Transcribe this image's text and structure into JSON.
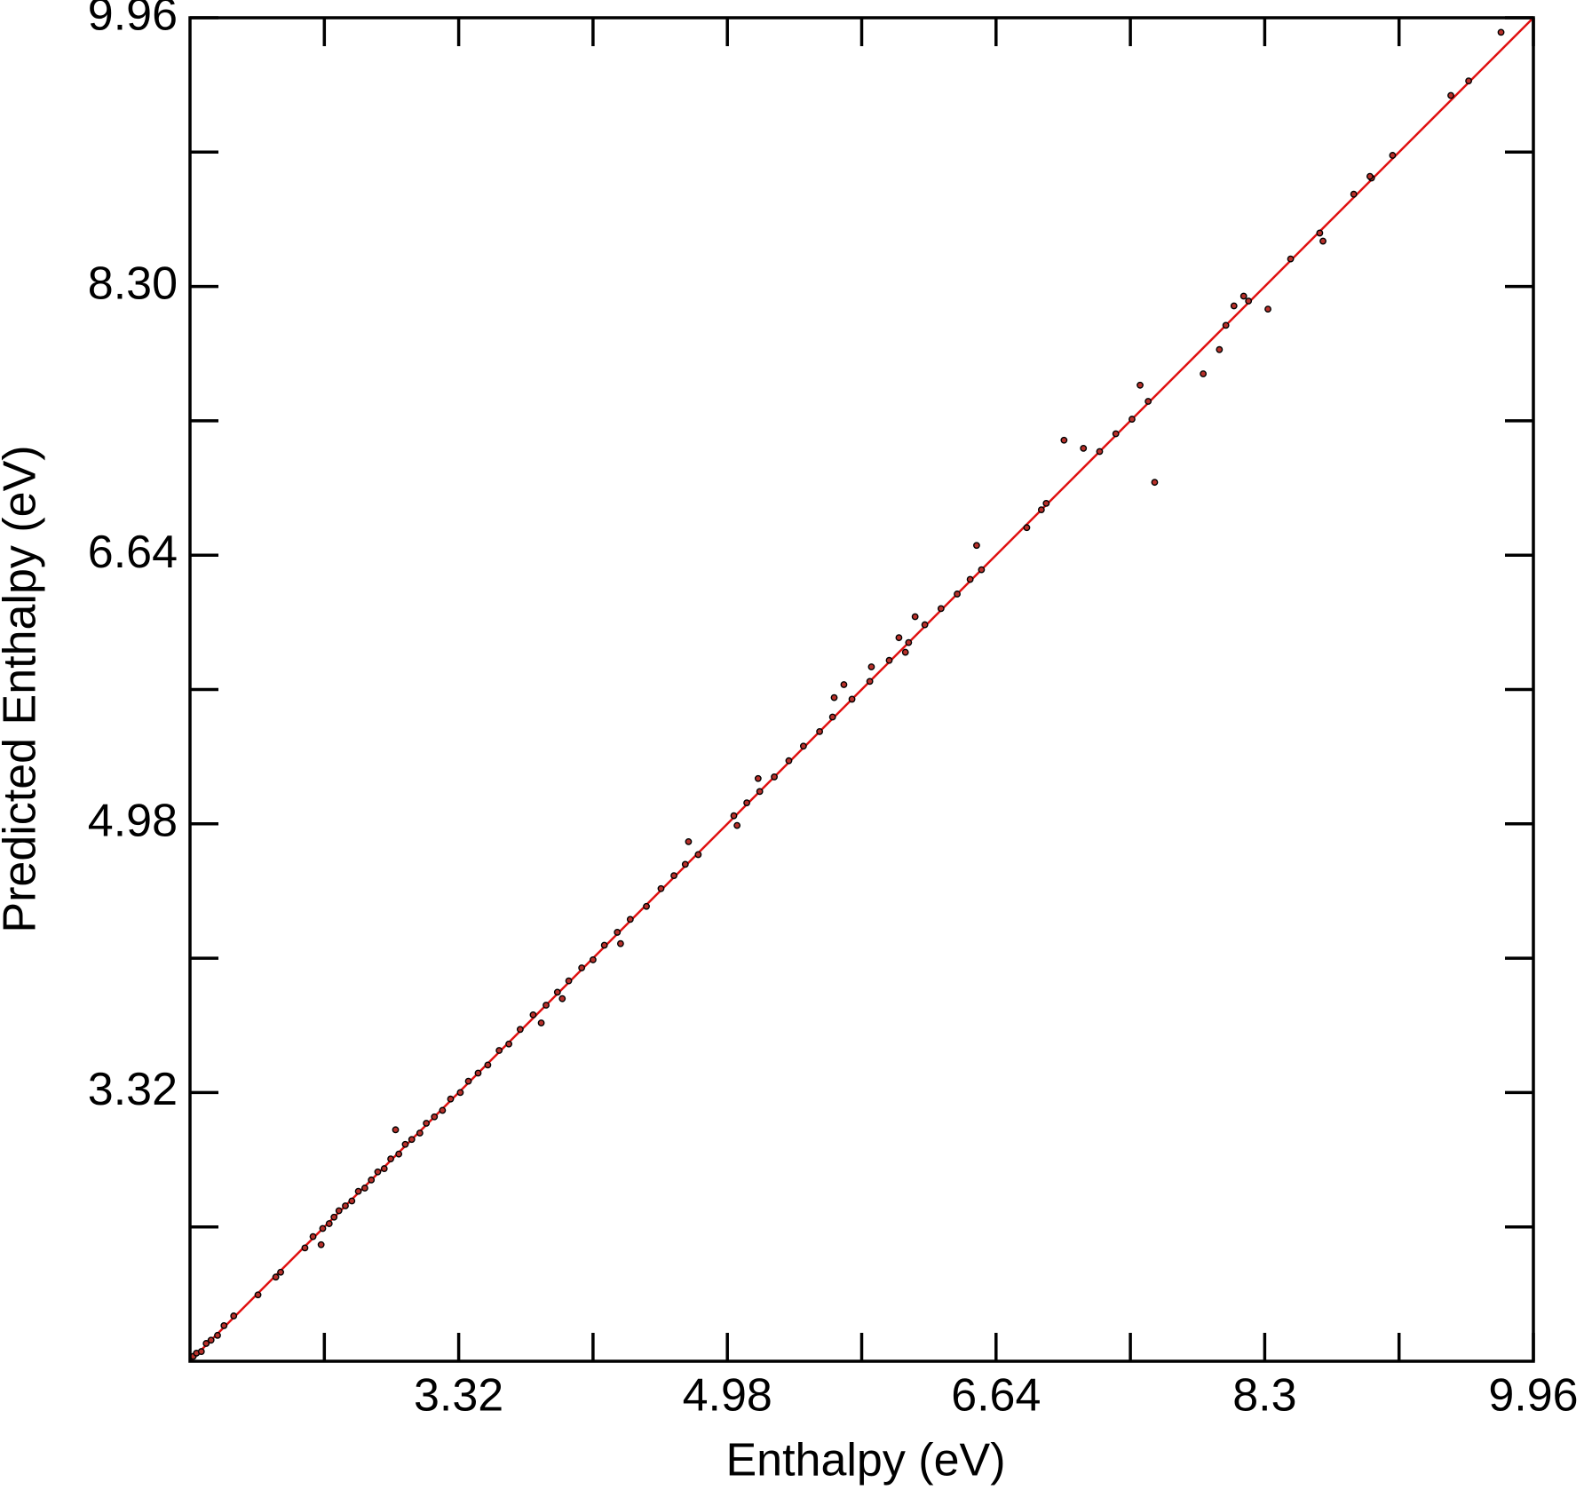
{
  "chart_data": {
    "type": "scatter",
    "x_label": "Enthalpy (eV)",
    "y_label": "Predicted Enthalpy (eV)",
    "xlim": [
      1.66,
      9.96
    ],
    "ylim": [
      1.66,
      9.96
    ],
    "xticks": [
      3.32,
      4.98,
      6.64,
      8.3,
      9.96
    ],
    "yticks": [
      {
        "value": 3.32,
        "label": "3.32"
      },
      {
        "value": 4.98,
        "label": "4.98"
      },
      {
        "value": 6.64,
        "label": "6.64"
      },
      {
        "value": 8.3,
        "label": "8.30"
      },
      {
        "value": 9.96,
        "label": "9.96"
      }
    ],
    "minor_xticks": [
      2.49,
      4.15,
      5.81,
      7.47,
      9.13
    ],
    "minor_yticks": [
      2.49,
      4.15,
      5.81,
      7.47,
      9.13
    ],
    "reference_line": {
      "color": "#e01010"
    },
    "series": [
      {
        "color": "#b8302a",
        "x": [
          1.68,
          1.7,
          1.73,
          1.76,
          1.79,
          1.83,
          1.87,
          1.93,
          2.08,
          2.19,
          2.37,
          2.42,
          2.48,
          2.52,
          2.55,
          2.58,
          2.62,
          2.66,
          2.7,
          2.74,
          2.78,
          2.82,
          2.86,
          2.9,
          2.95,
          2.99,
          3.03,
          3.08,
          3.12,
          3.17,
          3.22,
          3.27,
          3.33,
          3.38,
          3.44,
          3.5,
          3.57,
          3.63,
          3.7,
          3.78,
          3.86,
          3.93,
          4.0,
          4.08,
          4.15,
          4.22,
          4.3,
          4.38,
          4.48,
          4.57,
          4.65,
          4.72,
          4.8,
          5.02,
          5.1,
          5.18,
          5.27,
          5.36,
          5.45,
          5.55,
          5.63,
          5.75,
          5.86,
          5.98,
          6.1,
          6.2,
          6.3,
          6.4,
          6.48,
          6.55,
          6.92,
          7.28,
          7.38,
          7.48,
          7.58,
          8.06,
          8.2,
          8.64,
          8.96,
          7.06,
          7.18,
          7.53,
          7.62,
          7.92,
          8.02,
          8.11,
          8.17,
          8.32,
          8.66,
          8.46,
          9.76,
          9.56,
          9.45,
          9.09,
          8.95,
          8.85,
          6.52,
          6.83,
          6.95,
          6.04,
          6.14,
          6.08,
          5.87,
          5.7,
          5.64,
          5.17,
          5.04,
          4.74,
          4.32,
          3.96,
          3.83,
          2.93,
          2.47,
          2.22
        ],
        "y": [
          1.69,
          1.71,
          1.72,
          1.77,
          1.79,
          1.82,
          1.88,
          1.94,
          2.07,
          2.18,
          2.36,
          2.43,
          2.48,
          2.51,
          2.55,
          2.59,
          2.62,
          2.65,
          2.71,
          2.73,
          2.78,
          2.83,
          2.85,
          2.91,
          2.94,
          3.0,
          3.03,
          3.07,
          3.13,
          3.17,
          3.21,
          3.28,
          3.32,
          3.39,
          3.44,
          3.49,
          3.58,
          3.62,
          3.71,
          3.8,
          3.86,
          3.94,
          4.01,
          4.09,
          4.14,
          4.23,
          4.31,
          4.39,
          4.47,
          4.58,
          4.66,
          4.73,
          4.79,
          5.03,
          5.11,
          5.18,
          5.27,
          5.37,
          5.46,
          5.55,
          5.64,
          5.75,
          5.86,
          5.99,
          6.1,
          6.21,
          6.31,
          6.4,
          6.49,
          6.55,
          6.92,
          7.28,
          7.39,
          7.48,
          7.59,
          8.06,
          8.21,
          8.63,
          8.97,
          7.35,
          7.3,
          7.69,
          7.09,
          7.76,
          7.91,
          8.18,
          8.24,
          8.16,
          8.58,
          8.47,
          9.87,
          9.57,
          9.48,
          9.11,
          8.98,
          8.87,
          6.7,
          6.81,
          6.96,
          6.13,
          6.26,
          6.04,
          5.95,
          5.84,
          5.76,
          5.26,
          4.97,
          4.87,
          4.24,
          3.9,
          3.75,
          3.09,
          2.38,
          2.21
        ]
      }
    ]
  }
}
